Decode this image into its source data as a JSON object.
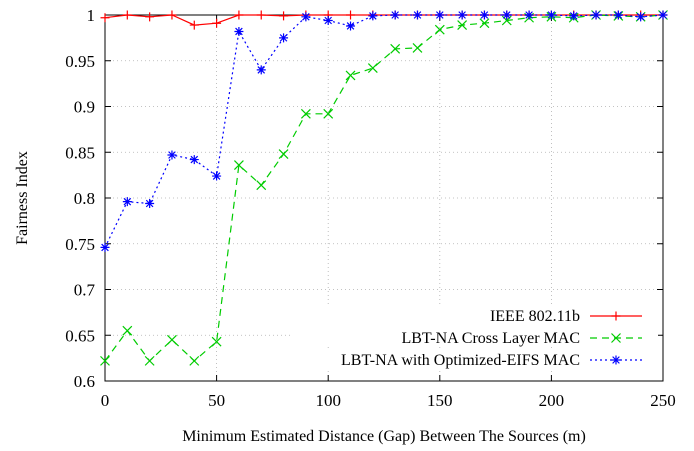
{
  "chart_data": {
    "type": "line",
    "title": "",
    "xlabel": "Minimum Estimated Distance (Gap) Between The Sources (m)",
    "ylabel": "Fairness Index",
    "xlim": [
      0,
      250
    ],
    "ylim": [
      0.6,
      1
    ],
    "xticks": [
      "0",
      "50",
      "100",
      "150",
      "200",
      "250"
    ],
    "yticks": [
      "0.6",
      "0.65",
      "0.7",
      "0.75",
      "0.8",
      "0.85",
      "0.9",
      "0.95",
      "1"
    ],
    "grid": true,
    "legend_position": "bottom-right",
    "x": [
      0,
      10,
      20,
      30,
      40,
      50,
      60,
      70,
      80,
      90,
      100,
      110,
      120,
      130,
      140,
      150,
      160,
      170,
      180,
      190,
      200,
      210,
      220,
      230,
      240,
      250
    ],
    "series": [
      {
        "name": "IEEE 802.11b",
        "color": "#ff0000",
        "line_style": "solid",
        "marker": "plus",
        "values": [
          0.997,
          1.0,
          0.998,
          1.0,
          0.989,
          0.991,
          1.0,
          1.0,
          0.999,
          1.0,
          1.0,
          1.0,
          1.0,
          1.0,
          1.0,
          1.0,
          1.0,
          1.0,
          1.0,
          1.0,
          1.0,
          1.0,
          1.0,
          1.0,
          1.0,
          1.0
        ]
      },
      {
        "name": "LBT-NA Cross Layer MAC",
        "color": "#00cc00",
        "line_style": "dashed",
        "marker": "cross",
        "values": [
          0.622,
          0.655,
          0.622,
          0.645,
          0.622,
          0.643,
          0.836,
          0.814,
          0.848,
          0.892,
          0.892,
          0.934,
          0.942,
          0.963,
          0.964,
          0.984,
          0.989,
          0.991,
          0.994,
          0.997,
          0.998,
          0.997,
          1.0,
          0.999,
          0.998,
          1.0
        ]
      },
      {
        "name": "LBT-NA with Optimized-EIFS MAC",
        "color": "#0000ff",
        "line_style": "dotted",
        "marker": "star",
        "values": [
          0.746,
          0.796,
          0.794,
          0.847,
          0.842,
          0.824,
          0.982,
          0.94,
          0.975,
          0.998,
          0.994,
          0.988,
          0.999,
          1.0,
          1.0,
          1.0,
          1.0,
          1.0,
          1.0,
          1.0,
          1.0,
          0.999,
          1.0,
          1.0,
          0.998,
          1.0
        ]
      }
    ]
  }
}
